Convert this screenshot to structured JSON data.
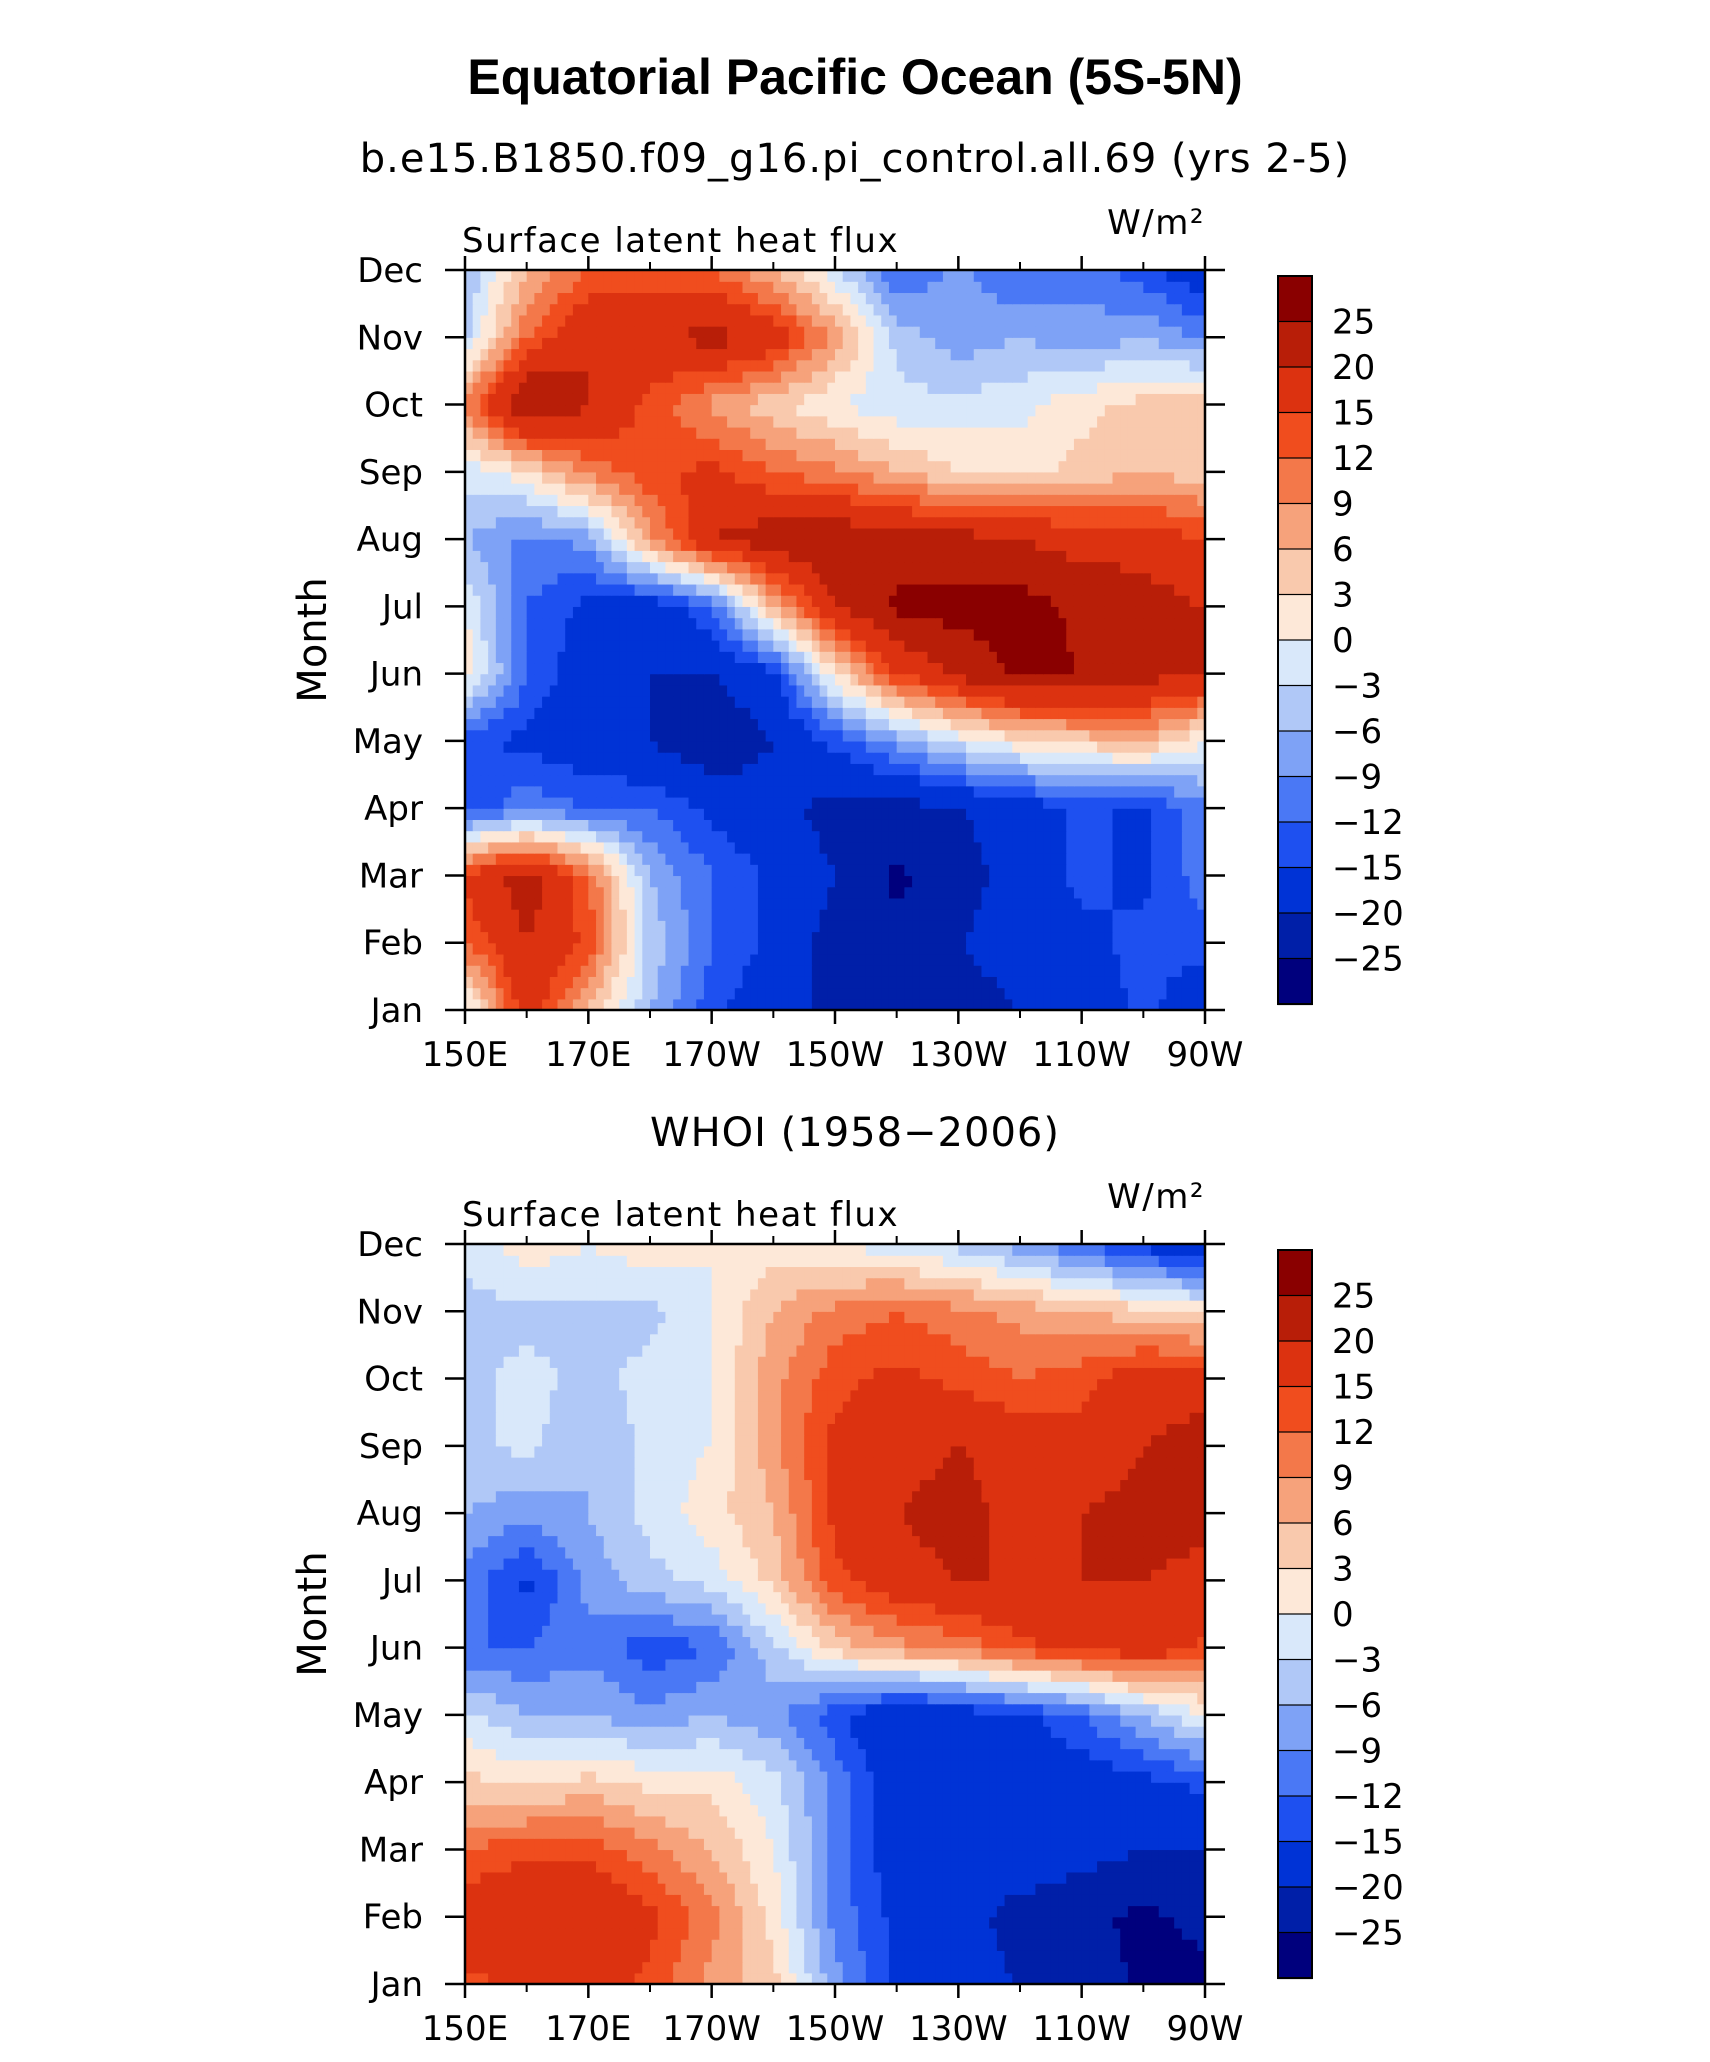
{
  "title": "Equatorial Pacific Ocean (5S-5N)",
  "chart_data": [
    {
      "type": "heatmap",
      "title": "b.e15.B1850.f09_g16.pi_control.all.69 (yrs 2-5)",
      "left_label": "Surface latent heat flux",
      "units_label": "W/m²",
      "ylabel": "Month",
      "x": [
        "150E",
        "170E",
        "170W",
        "150W",
        "130W",
        "110W",
        "90W"
      ],
      "y": [
        "Jan",
        "Feb",
        "Mar",
        "Apr",
        "May",
        "Jun",
        "Jul",
        "Aug",
        "Sep",
        "Oct",
        "Nov",
        "Dec"
      ],
      "values": [
        [
          -2,
          18,
          6,
          -6,
          -14,
          -18,
          -21,
          -24,
          -22,
          -20,
          -18,
          -14,
          -18
        ],
        [
          12,
          20,
          14,
          -4,
          -12,
          -16,
          -22,
          -24,
          -20,
          -18,
          -16,
          -14,
          -14
        ],
        [
          16,
          23,
          12,
          -6,
          -12,
          -16,
          -20,
          -26,
          -22,
          -18,
          -14,
          -16,
          -10
        ],
        [
          -14,
          -10,
          -12,
          -12,
          -16,
          -18,
          -22,
          -22,
          -20,
          -18,
          -14,
          -16,
          -10
        ],
        [
          -14,
          -16,
          -18,
          -20,
          -24,
          -20,
          -14,
          -8,
          -2,
          2,
          4,
          6,
          0
        ],
        [
          2,
          -12,
          -18,
          -20,
          -20,
          -16,
          2,
          15,
          21,
          26,
          25,
          22,
          20
        ],
        [
          0,
          -12,
          -16,
          -18,
          -12,
          6,
          20,
          26,
          27,
          27,
          24,
          22,
          20
        ],
        [
          -6,
          -10,
          -8,
          8,
          20,
          23,
          24,
          22,
          22,
          20,
          18,
          18,
          15
        ],
        [
          -2,
          2,
          10,
          14,
          16,
          12,
          10,
          6,
          3,
          2,
          4,
          6,
          4
        ],
        [
          10,
          26,
          20,
          14,
          8,
          4,
          0,
          -2,
          -2,
          -1,
          2,
          4,
          6
        ],
        [
          -4,
          12,
          20,
          18,
          22,
          18,
          8,
          -4,
          -8,
          -6,
          -8,
          -6,
          -10
        ],
        [
          -6,
          6,
          12,
          14,
          12,
          6,
          -2,
          -12,
          -8,
          -12,
          -10,
          -14,
          -18
        ]
      ],
      "zlevels": [
        -25,
        -20,
        -15,
        -12,
        -9,
        -6,
        -3,
        0,
        3,
        6,
        9,
        12,
        15,
        20,
        25
      ],
      "colors": [
        "#00007d",
        "#001fa8",
        "#0033d6",
        "#1e50f0",
        "#4a78f5",
        "#7ea2f6",
        "#b0c8f7",
        "#d9e8fa",
        "#fde8d8",
        "#f9c9ad",
        "#f6a27b",
        "#f3784a",
        "#f04d1e",
        "#dc3210",
        "#b81e08",
        "#8a0000"
      ],
      "colorbar_labels": [
        "25",
        "20",
        "15",
        "12",
        "9",
        "6",
        "3",
        "0",
        "−3",
        "−6",
        "−9",
        "−12",
        "−15",
        "−20",
        "−25"
      ]
    },
    {
      "type": "heatmap",
      "title": "WHOI (1958−2006)",
      "left_label": "Surface latent heat flux",
      "units_label": "W/m²",
      "ylabel": "Month",
      "x": [
        "150E",
        "170E",
        "170W",
        "150W",
        "130W",
        "110W",
        "90W"
      ],
      "y": [
        "Jan",
        "Feb",
        "Mar",
        "Apr",
        "May",
        "Jun",
        "Jul",
        "Aug",
        "Sep",
        "Oct",
        "Nov",
        "Dec"
      ],
      "values": [
        [
          14,
          16,
          18,
          14,
          8,
          4,
          -8,
          -16,
          -18,
          -20,
          -22,
          -26,
          -26
        ],
        [
          18,
          20,
          20,
          16,
          10,
          2,
          -10,
          -16,
          -18,
          -22,
          -24,
          -26,
          -24
        ],
        [
          12,
          14,
          14,
          10,
          6,
          0,
          -10,
          -18,
          -18,
          -16,
          -18,
          -20,
          -20
        ],
        [
          4,
          2,
          4,
          2,
          2,
          -2,
          -10,
          -18,
          -20,
          -18,
          -18,
          -16,
          -14
        ],
        [
          -2,
          -6,
          -6,
          -8,
          -6,
          -8,
          -14,
          -20,
          -18,
          -16,
          -12,
          -6,
          0
        ],
        [
          -12,
          -12,
          -10,
          -14,
          -12,
          -4,
          4,
          8,
          10,
          14,
          16,
          18,
          14
        ],
        [
          -10,
          -16,
          -8,
          -4,
          -2,
          4,
          14,
          18,
          20,
          20,
          20,
          20,
          18
        ],
        [
          -6,
          -8,
          -6,
          -2,
          2,
          6,
          16,
          20,
          22,
          18,
          20,
          22,
          22
        ],
        [
          -4,
          -2,
          -6,
          -2,
          0,
          8,
          16,
          18,
          20,
          18,
          16,
          20,
          22
        ],
        [
          -4,
          -2,
          -4,
          -2,
          0,
          8,
          14,
          16,
          14,
          12,
          14,
          18,
          18
        ],
        [
          -4,
          -4,
          -4,
          -4,
          0,
          6,
          10,
          12,
          10,
          8,
          6,
          4,
          2
        ],
        [
          -2,
          2,
          0,
          2,
          0,
          2,
          0,
          -2,
          -4,
          -8,
          -12,
          -16,
          -20
        ]
      ],
      "zlevels": [
        -25,
        -20,
        -15,
        -12,
        -9,
        -6,
        -3,
        0,
        3,
        6,
        9,
        12,
        15,
        20,
        25
      ],
      "colors": [
        "#00007d",
        "#001fa8",
        "#0033d6",
        "#1e50f0",
        "#4a78f5",
        "#7ea2f6",
        "#b0c8f7",
        "#d9e8fa",
        "#fde8d8",
        "#f9c9ad",
        "#f6a27b",
        "#f3784a",
        "#f04d1e",
        "#dc3210",
        "#b81e08",
        "#8a0000"
      ],
      "colorbar_labels": [
        "25",
        "20",
        "15",
        "12",
        "9",
        "6",
        "3",
        "0",
        "−3",
        "−6",
        "−9",
        "−12",
        "−15",
        "−20",
        "−25"
      ]
    }
  ]
}
